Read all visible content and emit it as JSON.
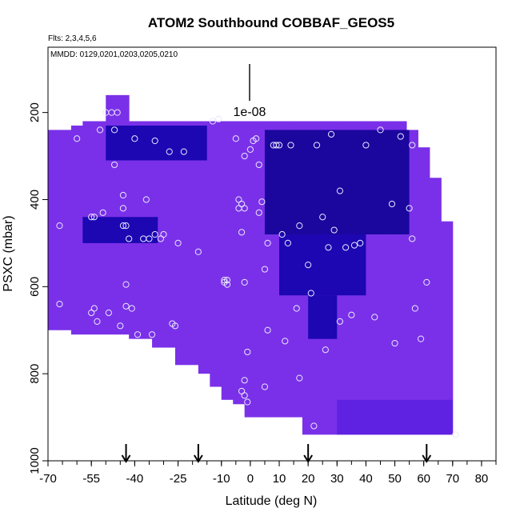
{
  "chart_data": {
    "type": "heatmap",
    "title": "ATOM2 Southbound COBBAF_GEOS5",
    "flights_note": "Flts: 2,3,4,5,6",
    "dates_note": "MMDD: 0129,0201,0203,0205,0210",
    "scale_label": "1e-08",
    "xlabel": "Latitude (deg N)",
    "ylabel": "PSXC (mbar)",
    "xlim": [
      -70,
      85
    ],
    "ylim": [
      1000,
      50
    ],
    "y_reversed": true,
    "x_tick_labels": [
      "-70",
      "-55",
      "-40",
      "-25",
      "-10",
      "0",
      "10",
      "20",
      "30",
      "40",
      "50",
      "60",
      "70",
      "80"
    ],
    "x_ticks": [
      -70,
      -55,
      -40,
      -25,
      -10,
      0,
      10,
      20,
      30,
      40,
      50,
      60,
      70,
      80
    ],
    "y_tick_labels": [
      "200",
      "400",
      "600",
      "800",
      "1000"
    ],
    "y_ticks": [
      200,
      400,
      600,
      800,
      1000
    ],
    "latitude_markers": [
      -43,
      -18,
      20,
      61
    ],
    "colors": {
      "light": "#7a30e8",
      "mid": "#5a1ee0",
      "dark": "#0c00a8",
      "darkest": "#0a0090",
      "circle": "#e8e8ff",
      "frame": "#000000"
    },
    "columns": [
      {
        "lat": -68,
        "p_top": 240,
        "p_bot": 700
      },
      {
        "lat": -64,
        "p_top": 240,
        "p_bot": 700
      },
      {
        "lat": -60,
        "p_top": 230,
        "p_bot": 710
      },
      {
        "lat": -56,
        "p_top": 220,
        "p_bot": 710
      },
      {
        "lat": -52,
        "p_top": 220,
        "p_bot": 710
      },
      {
        "lat": -48,
        "p_top": 160,
        "p_bot": 710
      },
      {
        "lat": -44,
        "p_top": 160,
        "p_bot": 710
      },
      {
        "lat": -40,
        "p_top": 220,
        "p_bot": 720
      },
      {
        "lat": -36,
        "p_top": 220,
        "p_bot": 720
      },
      {
        "lat": -32,
        "p_top": 220,
        "p_bot": 740
      },
      {
        "lat": -28,
        "p_top": 220,
        "p_bot": 740
      },
      {
        "lat": -24,
        "p_top": 220,
        "p_bot": 780
      },
      {
        "lat": -20,
        "p_top": 220,
        "p_bot": 780
      },
      {
        "lat": -16,
        "p_top": 220,
        "p_bot": 800
      },
      {
        "lat": -12,
        "p_top": 220,
        "p_bot": 830
      },
      {
        "lat": -8,
        "p_top": 220,
        "p_bot": 860
      },
      {
        "lat": -4,
        "p_top": 220,
        "p_bot": 870
      },
      {
        "lat": 0,
        "p_top": 220,
        "p_bot": 900
      },
      {
        "lat": 4,
        "p_top": 220,
        "p_bot": 900
      },
      {
        "lat": 8,
        "p_top": 220,
        "p_bot": 900
      },
      {
        "lat": 12,
        "p_top": 220,
        "p_bot": 900
      },
      {
        "lat": 16,
        "p_top": 220,
        "p_bot": 900
      },
      {
        "lat": 20,
        "p_top": 220,
        "p_bot": 940
      },
      {
        "lat": 24,
        "p_top": 220,
        "p_bot": 940
      },
      {
        "lat": 28,
        "p_top": 220,
        "p_bot": 940
      },
      {
        "lat": 32,
        "p_top": 220,
        "p_bot": 940
      },
      {
        "lat": 36,
        "p_top": 220,
        "p_bot": 940
      },
      {
        "lat": 40,
        "p_top": 220,
        "p_bot": 940
      },
      {
        "lat": 44,
        "p_top": 220,
        "p_bot": 940
      },
      {
        "lat": 48,
        "p_top": 220,
        "p_bot": 940
      },
      {
        "lat": 52,
        "p_top": 220,
        "p_bot": 940
      },
      {
        "lat": 56,
        "p_top": 240,
        "p_bot": 940
      },
      {
        "lat": 60,
        "p_top": 280,
        "p_bot": 940
      },
      {
        "lat": 64,
        "p_top": 350,
        "p_bot": 940
      },
      {
        "lat": 68,
        "p_top": 450,
        "p_bot": 940
      }
    ],
    "dark_regions": [
      {
        "lat_min": -50,
        "lat_max": -15,
        "p_min": 230,
        "p_max": 310,
        "level": "dark"
      },
      {
        "lat_min": -58,
        "lat_max": -32,
        "p_min": 440,
        "p_max": 500,
        "level": "dark"
      },
      {
        "lat_min": 5,
        "lat_max": 55,
        "p_min": 240,
        "p_max": 480,
        "level": "darkest"
      },
      {
        "lat_min": 10,
        "lat_max": 40,
        "p_min": 480,
        "p_max": 620,
        "level": "dark"
      },
      {
        "lat_min": 20,
        "lat_max": 30,
        "p_min": 620,
        "p_max": 720,
        "level": "dark"
      },
      {
        "lat_min": 30,
        "lat_max": 70,
        "p_min": 860,
        "p_max": 940,
        "level": "mid"
      }
    ],
    "samples": [
      [
        -66,
        460
      ],
      [
        -66,
        640
      ],
      [
        -60,
        260
      ],
      [
        -55,
        440
      ],
      [
        -54,
        440
      ],
      [
        -55,
        660
      ],
      [
        -54,
        650
      ],
      [
        -53,
        680
      ],
      [
        -52,
        240
      ],
      [
        -51,
        430
      ],
      [
        -50,
        200
      ],
      [
        -49,
        660
      ],
      [
        -48,
        200
      ],
      [
        -47,
        240
      ],
      [
        -47,
        320
      ],
      [
        -46,
        200
      ],
      [
        -45,
        690
      ],
      [
        -44,
        390
      ],
      [
        -44,
        420
      ],
      [
        -44,
        460
      ],
      [
        -43,
        460
      ],
      [
        -43,
        595
      ],
      [
        -43,
        645
      ],
      [
        -42,
        490
      ],
      [
        -41,
        650
      ],
      [
        -40,
        260
      ],
      [
        -39,
        710
      ],
      [
        -37,
        490
      ],
      [
        -36,
        400
      ],
      [
        -35,
        490
      ],
      [
        -34,
        710
      ],
      [
        -33,
        480
      ],
      [
        -33,
        265
      ],
      [
        -31,
        490
      ],
      [
        -30,
        480
      ],
      [
        -28,
        290
      ],
      [
        -27,
        685
      ],
      [
        -26,
        690
      ],
      [
        -25,
        500
      ],
      [
        -23,
        290
      ],
      [
        -18,
        520
      ],
      [
        -13,
        220
      ],
      [
        -11,
        215
      ],
      [
        -9,
        590
      ],
      [
        -9,
        585
      ],
      [
        -8,
        585
      ],
      [
        -8,
        595
      ],
      [
        -5,
        260
      ],
      [
        -3,
        475
      ],
      [
        -2,
        590
      ],
      [
        -2,
        815
      ],
      [
        -2,
        300
      ],
      [
        -3,
        410
      ],
      [
        -4,
        400
      ],
      [
        -4,
        420
      ],
      [
        -3,
        840
      ],
      [
        -2,
        850
      ],
      [
        -2,
        420
      ],
      [
        -1,
        750
      ],
      [
        -1,
        865
      ],
      [
        0,
        285
      ],
      [
        1,
        265
      ],
      [
        2,
        260
      ],
      [
        3,
        430
      ],
      [
        3,
        320
      ],
      [
        4,
        405
      ],
      [
        5,
        560
      ],
      [
        5,
        830
      ],
      [
        6,
        700
      ],
      [
        6,
        500
      ],
      [
        8,
        275
      ],
      [
        9,
        275
      ],
      [
        10,
        275
      ],
      [
        11,
        480
      ],
      [
        12,
        725
      ],
      [
        13,
        500
      ],
      [
        14,
        275
      ],
      [
        16,
        650
      ],
      [
        17,
        460
      ],
      [
        17,
        810
      ],
      [
        20,
        550
      ],
      [
        21,
        615
      ],
      [
        22,
        920
      ],
      [
        23,
        275
      ],
      [
        25,
        440
      ],
      [
        26,
        745
      ],
      [
        27,
        510
      ],
      [
        28,
        250
      ],
      [
        29,
        470
      ],
      [
        31,
        680
      ],
      [
        31,
        380
      ],
      [
        33,
        510
      ],
      [
        35,
        665
      ],
      [
        36,
        505
      ],
      [
        38,
        500
      ],
      [
        40,
        275
      ],
      [
        43,
        670
      ],
      [
        45,
        240
      ],
      [
        49,
        410
      ],
      [
        50,
        730
      ],
      [
        52,
        255
      ],
      [
        56,
        275
      ],
      [
        55,
        420
      ],
      [
        56,
        490
      ],
      [
        57,
        650
      ],
      [
        59,
        720
      ],
      [
        61,
        590
      ],
      [
        71,
        940
      ]
    ]
  }
}
